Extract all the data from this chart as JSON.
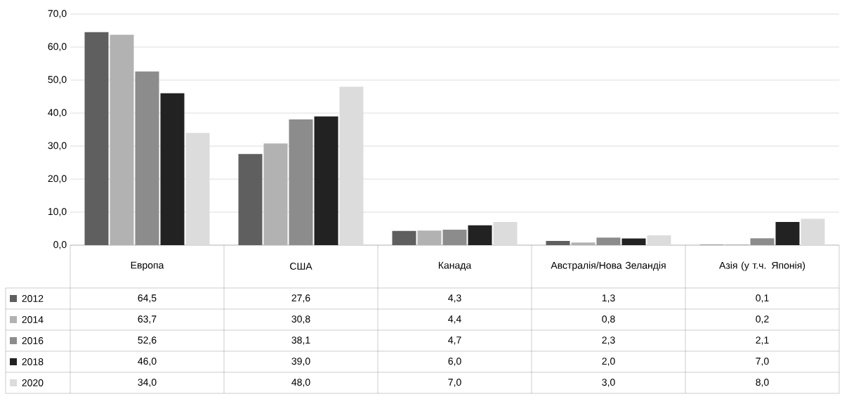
{
  "chart_data": {
    "type": "bar",
    "categories": [
      "Европа",
      "США",
      "Канада",
      "Австралія/Нова Зеландія",
      "Азія (у т.ч. Японія)"
    ],
    "series": [
      {
        "name": "2012",
        "color": "#5f5f5f",
        "values": [
          64.5,
          27.6,
          4.3,
          1.3,
          0.1
        ],
        "value_labels": [
          "64,5",
          "27,6",
          "4,3",
          "1,3",
          "0,1"
        ]
      },
      {
        "name": "2014",
        "color": "#b2b2b2",
        "values": [
          63.7,
          30.8,
          4.4,
          0.8,
          0.2
        ],
        "value_labels": [
          "63,7",
          "30,8",
          "4,4",
          "0,8",
          "0,2"
        ]
      },
      {
        "name": "2016",
        "color": "#8c8c8c",
        "values": [
          52.6,
          38.1,
          4.7,
          2.3,
          2.1
        ],
        "value_labels": [
          "52,6",
          "38,1",
          "4,7",
          "2,3",
          "2,1"
        ]
      },
      {
        "name": "2018",
        "color": "#222222",
        "values": [
          46.0,
          39.0,
          6.0,
          2.0,
          7.0
        ],
        "value_labels": [
          "46,0",
          "39,0",
          "6,0",
          "2,0",
          "7,0"
        ]
      },
      {
        "name": "2020",
        "color": "#dcdcdc",
        "values": [
          34.0,
          48.0,
          7.0,
          3.0,
          8.0
        ],
        "value_labels": [
          "34,0",
          "48,0",
          "7,0",
          "3,0",
          "8,0"
        ]
      }
    ],
    "ylim": [
      0,
      70
    ],
    "yticks": [
      {
        "value": 0,
        "label": "0,0"
      },
      {
        "value": 10,
        "label": "10,0"
      },
      {
        "value": 20,
        "label": "20,0"
      },
      {
        "value": 30,
        "label": "30,0"
      },
      {
        "value": 40,
        "label": "40,0"
      },
      {
        "value": 50,
        "label": "50,0"
      },
      {
        "value": 60,
        "label": "60,0"
      },
      {
        "value": 70,
        "label": "70,0"
      }
    ],
    "grid": "y",
    "legend": "bottom"
  }
}
